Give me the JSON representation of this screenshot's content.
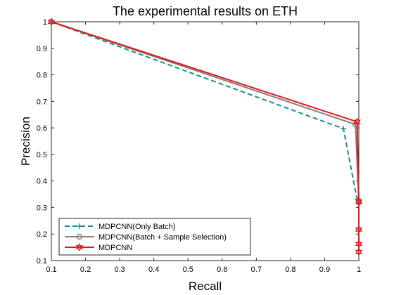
{
  "chart_data": {
    "type": "line",
    "title": "The experimental results on ETH",
    "xlabel": "Recall",
    "ylabel": "Precision",
    "xlim": [
      0.1,
      1.0
    ],
    "ylim": [
      0.1,
      1.0
    ],
    "xticks": [
      0.1,
      0.2,
      0.3,
      0.4,
      0.5,
      0.6,
      0.7,
      0.8,
      0.9,
      1.0
    ],
    "yticks": [
      0.1,
      0.2,
      0.3,
      0.4,
      0.5,
      0.6,
      0.7,
      0.8,
      0.9,
      1.0
    ],
    "xtick_labels": [
      "0.1",
      "0.2",
      "0.3",
      "0.4",
      "0.5",
      "0.6",
      "0.7",
      "0.8",
      "0.9",
      "1"
    ],
    "ytick_labels": [
      "0.1",
      "0.2",
      "0.3",
      "0.4",
      "0.5",
      "0.6",
      "0.7",
      "0.8",
      "0.9",
      "1"
    ],
    "legend_position": "bottom-left",
    "grid": false,
    "series": [
      {
        "name": "MDPCNN(Only Batch)",
        "color": "#1f8a8a",
        "line_style": "dashed",
        "marker": "plus",
        "x": [
          0.1,
          0.955,
          0.995,
          1.0
        ],
        "y": [
          1.0,
          0.597,
          0.33,
          0.32
        ]
      },
      {
        "name": "MDPCNN(Batch + Sample Selection)",
        "color": "#808080",
        "line_style": "solid",
        "marker": "circle",
        "x": [
          0.1,
          0.99,
          1.0,
          1.0
        ],
        "y": [
          1.0,
          0.613,
          0.325,
          0.32
        ]
      },
      {
        "name": "MDPCNN",
        "color": "#e01a1a",
        "line_style": "solid",
        "marker": "hexagram",
        "x": [
          0.1,
          0.995,
          1.0,
          1.0,
          1.0,
          1.0
        ],
        "y": [
          1.0,
          0.623,
          0.322,
          0.217,
          0.163,
          0.133
        ]
      }
    ]
  }
}
